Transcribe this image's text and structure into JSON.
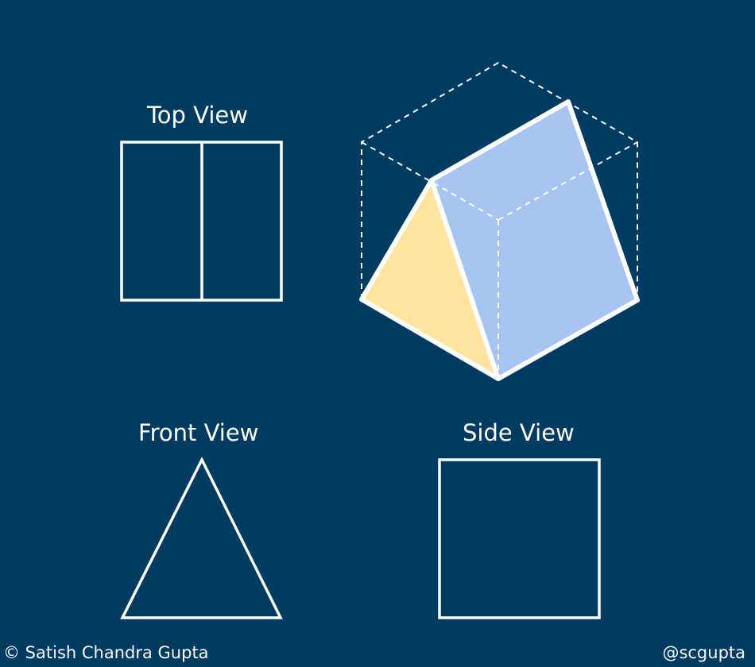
{
  "labels": {
    "top_view": "Top View",
    "front_view": "Front View",
    "side_view": "Side View"
  },
  "credits": {
    "author": "© Satish Chandra Gupta",
    "handle": "@scgupta"
  },
  "colors": {
    "background": "#003b61",
    "outline": "#ffffff",
    "prism_end_face": "#ffe4a0",
    "prism_slanted_face": "#a8c4f2"
  }
}
